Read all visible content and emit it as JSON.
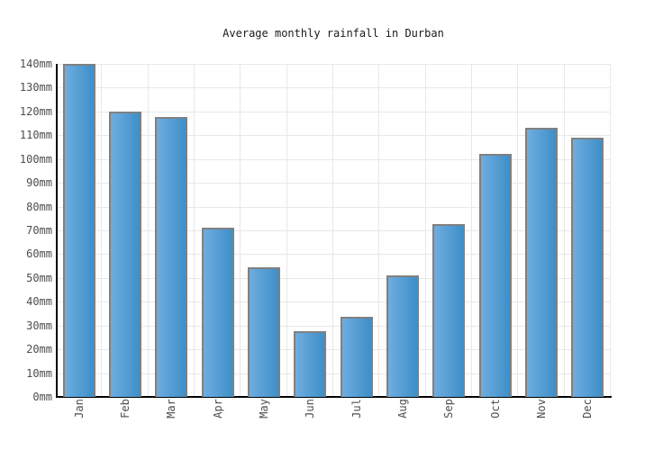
{
  "title": "Average monthly rainfall in Durban",
  "chart_data": {
    "type": "bar",
    "title": "Average monthly rainfall in Durban",
    "categories": [
      "Jan",
      "Feb",
      "Mar",
      "Apr",
      "May",
      "Jun",
      "Jul",
      "Aug",
      "Sep",
      "Oct",
      "Nov",
      "Dec"
    ],
    "values": [
      140,
      120,
      117.5,
      71,
      54.5,
      27.5,
      33.5,
      51,
      72.5,
      102,
      113,
      109
    ],
    "unit": "mm",
    "xlabel": "",
    "ylabel": "",
    "ylim": [
      0,
      140
    ],
    "ytick_step": 10,
    "ytick_labels": [
      "0mm",
      "10mm",
      "20mm",
      "30mm",
      "40mm",
      "50mm",
      "60mm",
      "70mm",
      "80mm",
      "90mm",
      "100mm",
      "110mm",
      "120mm",
      "130mm",
      "140mm"
    ],
    "grid": true,
    "legend": false
  },
  "colors": {
    "background": "#ffffff",
    "title": "#1a1a1a",
    "tick_label": "#4d4d4d",
    "axis": "#000000",
    "gridline": "#e8e8e8",
    "bar_gradient_left": "#6eade0",
    "bar_gradient_right": "#3e8fc8",
    "bar_border": "#808080"
  }
}
